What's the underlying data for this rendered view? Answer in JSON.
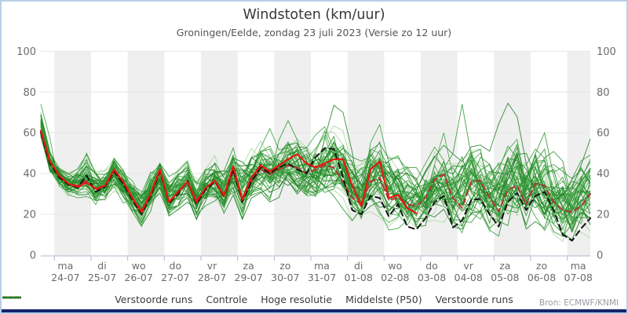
{
  "header": {
    "title": "Windstoten (km/uur)",
    "subtitle": "Groningen/Eelde, zondag 23 juli 2023 (Versie zo 12 uur)"
  },
  "footer": {
    "source": "Bron: ECMWF/KNMI"
  },
  "legend": [
    {
      "label": "Verstoorde runs",
      "color": "#aad6a0",
      "dash": false
    },
    {
      "label": "Controle",
      "color": "#141414",
      "dash": true
    },
    {
      "label": "Hoge resolutie",
      "color": "#e8150f",
      "dash": false
    },
    {
      "label": "Middelste (P50)",
      "color": "#b03535",
      "dash": true
    },
    {
      "label": "Verstoorde runs",
      "color": "#1e8022",
      "dash": false
    }
  ],
  "colors": {
    "band": "#efefef",
    "grid": "#e6e6e6",
    "axis": "#aeb8cf",
    "tick_label": "#6b6b6b",
    "border_light": "#b9cfe8",
    "border_dark": "#18246d"
  },
  "chart_data": {
    "type": "line",
    "title": "Windstoten (km/uur)",
    "subtitle": "Groningen/Eelde, zondag 23 juli 2023 (Versie zo 12 uur)",
    "ylabel": "",
    "ylim": [
      0,
      100
    ],
    "yticks": [
      0,
      20,
      40,
      60,
      80,
      100
    ],
    "grid": "horizontal, alternating day bands",
    "legend_position": "bottom",
    "x_step_hours": 6,
    "x_start": "zo 23-07 ~15:00",
    "days": [
      {
        "dow": "ma",
        "date": "24-07"
      },
      {
        "dow": "di",
        "date": "25-07"
      },
      {
        "dow": "wo",
        "date": "26-07"
      },
      {
        "dow": "do",
        "date": "27-07"
      },
      {
        "dow": "vr",
        "date": "28-07"
      },
      {
        "dow": "za",
        "date": "29-07"
      },
      {
        "dow": "zo",
        "date": "30-07"
      },
      {
        "dow": "ma",
        "date": "31-07"
      },
      {
        "dow": "di",
        "date": "01-08"
      },
      {
        "dow": "wo",
        "date": "02-08"
      },
      {
        "dow": "do",
        "date": "03-08"
      },
      {
        "dow": "vr",
        "date": "04-08"
      },
      {
        "dow": "za",
        "date": "05-08"
      },
      {
        "dow": "zo",
        "date": "06-08"
      },
      {
        "dow": "ma",
        "date": "07-08"
      }
    ],
    "series": [
      {
        "name": "Hoge resolutie",
        "color": "#e8150f",
        "style": "solid",
        "width": 2.2,
        "values": [
          61,
          46,
          39,
          35,
          33.5,
          35.5,
          32.5,
          34,
          42,
          36,
          28,
          21,
          30,
          42,
          26,
          31,
          36,
          26,
          33,
          36.5,
          29,
          43.5,
          27,
          38,
          44,
          41,
          44,
          47,
          49.5,
          45,
          43,
          45,
          47,
          47,
          34,
          24,
          42,
          46,
          28,
          29.5,
          23,
          20.5
        ]
      },
      {
        "name": "Controle",
        "color": "#141414",
        "style": "dashed",
        "width": 2,
        "values": [
          60,
          45,
          38,
          34.5,
          33,
          39,
          31,
          33.5,
          41,
          35,
          27,
          20,
          29,
          41,
          25.5,
          30,
          36.5,
          25,
          32,
          36,
          28.5,
          42,
          26,
          36,
          43,
          40,
          43,
          45,
          42,
          40,
          48,
          52.5,
          52,
          38,
          22,
          20,
          29,
          28,
          19,
          25,
          14,
          12.5,
          18,
          26,
          29,
          13.5,
          17,
          27,
          27.5,
          20,
          14,
          26,
          30.5,
          22,
          29,
          31,
          22,
          10,
          7,
          13,
          18
        ]
      },
      {
        "name": "Middelste (P50)",
        "color": "#b03535",
        "style": "dashed",
        "width": 2,
        "values": [
          60.5,
          45.5,
          38.5,
          35,
          34,
          36.5,
          32,
          34,
          41.5,
          35.5,
          27.5,
          22,
          30,
          41,
          26,
          31,
          36,
          27,
          32.5,
          36,
          29,
          41,
          28,
          36,
          42,
          39.5,
          42,
          44,
          43,
          40,
          42,
          44,
          43,
          36,
          28,
          25,
          36,
          38,
          27,
          28,
          25,
          24,
          28,
          37,
          39.5,
          28,
          23,
          36,
          36.5,
          28,
          21.5,
          32,
          34,
          25,
          35,
          34,
          26,
          22,
          21,
          24,
          30
        ]
      }
    ],
    "ensemble": {
      "name": "Verstoorde runs",
      "count": 50,
      "seed": 11,
      "color_light": "#aad6a0",
      "colors_dark": [
        "#2e9732",
        "#1e8022",
        "#3ba33f"
      ],
      "light_every": 4,
      "lo": [
        56,
        40,
        34,
        29,
        28,
        29,
        25,
        26,
        32,
        26,
        20,
        14,
        22,
        29,
        18,
        22,
        26,
        17,
        22,
        25,
        18,
        27,
        18,
        25,
        29,
        27,
        29,
        31,
        29,
        25,
        27,
        29,
        27,
        23,
        16,
        13,
        19,
        19,
        13,
        14,
        11,
        9,
        11,
        17,
        17,
        11,
        10,
        15,
        15,
        11,
        9,
        13,
        13,
        9,
        14,
        13,
        9,
        5,
        5,
        7,
        9
      ],
      "hi": [
        70,
        52,
        44,
        41,
        43,
        49,
        42,
        43,
        50,
        43,
        38,
        33,
        41,
        48,
        39,
        43,
        47,
        39,
        45,
        48,
        44,
        52,
        47,
        52,
        56,
        57,
        58,
        60,
        58,
        56,
        58,
        62,
        64,
        60,
        52,
        49,
        57,
        58,
        51,
        48,
        45,
        42,
        46,
        53,
        55,
        50,
        52,
        55,
        53,
        50,
        52,
        57,
        58,
        52,
        56,
        54,
        50,
        45,
        43,
        47,
        52
      ],
      "spikes": [
        {
          "i": 0,
          "v": 74,
          "m": 41
        },
        {
          "i": 5,
          "v": 50,
          "m": 2
        },
        {
          "i": 25,
          "v": 62,
          "m": 5
        },
        {
          "i": 27,
          "v": 66,
          "m": 9
        },
        {
          "i": 32,
          "v": 77,
          "m": 13
        },
        {
          "i": 33,
          "v": 70,
          "m": 13
        },
        {
          "i": 37,
          "v": 64,
          "m": 17
        },
        {
          "i": 44,
          "v": 60,
          "m": 29
        },
        {
          "i": 46,
          "v": 74,
          "m": 21
        },
        {
          "i": 51,
          "v": 81,
          "m": 25
        },
        {
          "i": 52,
          "v": 68,
          "m": 25
        },
        {
          "i": 55,
          "v": 60,
          "m": 33
        },
        {
          "i": 60,
          "v": 57,
          "m": 37
        }
      ]
    }
  }
}
